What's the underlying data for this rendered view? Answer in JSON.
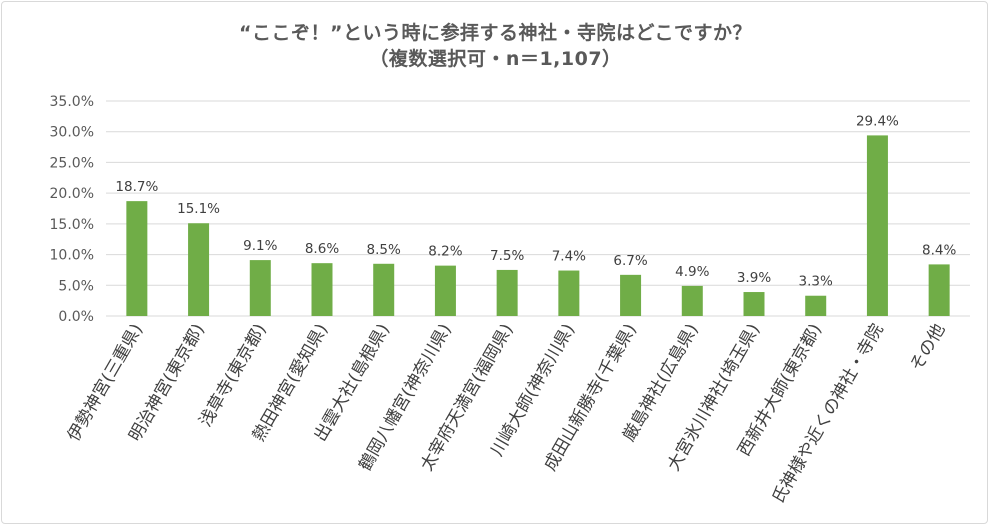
{
  "chart_data": {
    "type": "bar",
    "title": "“ここぞ！”という時に参拝する神社・寺院はどこですか？",
    "subtitle": "（複数選択可・n＝1,107）",
    "categories": [
      "伊勢神宮(三重県)",
      "明治神宮(東京都)",
      "浅草寺(東京都)",
      "熱田神宮(愛知県)",
      "出雲大社(島根県)",
      "鶴岡八幡宮(神奈川県)",
      "太宰府天満宮(福岡県)",
      "川崎大師(神奈川県)",
      "成田山新勝寺(千葉県)",
      "厳島神社(広島県)",
      "大宮氷川神社(埼玉県)",
      "西新井大師(東京都)",
      "氏神様や近くの神社・寺院",
      "その他"
    ],
    "values": [
      18.7,
      15.1,
      9.1,
      8.6,
      8.5,
      8.2,
      7.5,
      7.4,
      6.7,
      4.9,
      3.9,
      3.3,
      29.4,
      8.4
    ],
    "data_labels": [
      "18.7%",
      "15.1%",
      "9.1%",
      "8.6%",
      "8.5%",
      "8.2%",
      "7.5%",
      "7.4%",
      "6.7%",
      "4.9%",
      "3.9%",
      "3.3%",
      "29.4%",
      "8.4%"
    ],
    "y_ticks": [
      "0.0%",
      "5.0%",
      "10.0%",
      "15.0%",
      "20.0%",
      "25.0%",
      "30.0%",
      "35.0%"
    ],
    "ylim": [
      0,
      35
    ],
    "ytick_step": 5,
    "grid": true,
    "legend": "none",
    "bar_color": "#70ad47",
    "grid_color": "#d9d9d9"
  }
}
